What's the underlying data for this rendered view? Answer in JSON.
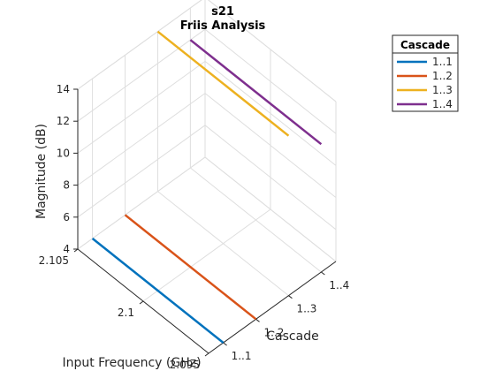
{
  "chart_data": {
    "type": "line",
    "title": "s21",
    "subtitle": "Friis Analysis",
    "xlabel": "Input Frequency (GHz)",
    "ylabel": "Cascade",
    "zlabel": "Magnitude (dB)",
    "x_ticks": [
      "2.105",
      "2.1",
      "2.095"
    ],
    "y_ticks": [
      "1..1",
      "1..2",
      "1..3",
      "1..4"
    ],
    "z_ticks": [
      "4",
      "6",
      "8",
      "10",
      "12",
      "14"
    ],
    "xlim": [
      2.095,
      2.105
    ],
    "zlim": [
      4,
      14
    ],
    "grid": true,
    "legend": {
      "title": "Cascade",
      "placement": "top-right",
      "entries": [
        "1..1",
        "1..2",
        "1..3",
        "1..4"
      ]
    },
    "series": [
      {
        "name": "1..1",
        "color": "#0072BD",
        "cascade": 1,
        "x": [
          2.095,
          2.105
        ],
        "z": [
          4.0,
          4.0
        ]
      },
      {
        "name": "1..2",
        "color": "#D95319",
        "cascade": 2,
        "x": [
          2.095,
          2.105
        ],
        "z": [
          4.0,
          4.0
        ]
      },
      {
        "name": "1..3",
        "color": "#EDB120",
        "cascade": 3,
        "x": [
          2.095,
          2.105
        ],
        "z": [
          14.0,
          14.0
        ]
      },
      {
        "name": "1..4",
        "color": "#7E2F8E",
        "cascade": 4,
        "x": [
          2.095,
          2.105
        ],
        "z": [
          12.0,
          12.0
        ]
      }
    ]
  }
}
